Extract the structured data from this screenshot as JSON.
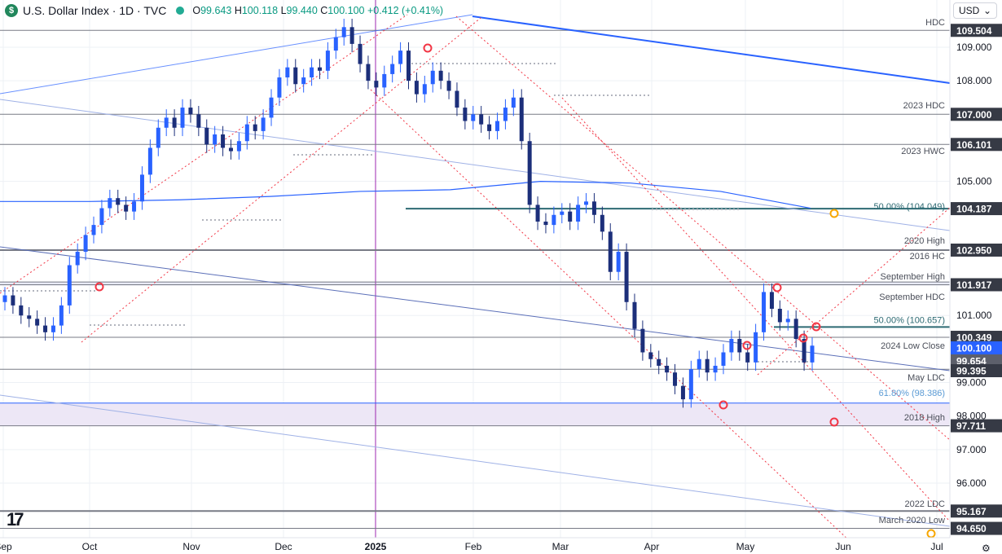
{
  "header": {
    "title": "U.S. Dollar Index · 1D · TVC",
    "open_label": "O",
    "open": "99.643",
    "high_label": "H",
    "high": "100.118",
    "low_label": "L",
    "low": "99.440",
    "close_label": "C",
    "close": "100.100",
    "change": "+0.412 (+0.41%)"
  },
  "currency_button": {
    "label": "USD"
  },
  "colors": {
    "candle_up": "#2962ff",
    "candle_down": "#1c2f7a",
    "channel": "#f23645",
    "trend_blue": "#2962ff",
    "level_gray": "#787b86",
    "vertical_marker": "#9c27b0",
    "price_box": "#363a45",
    "current_price_box": "#2962ff",
    "zone_fill": "#ede7f6"
  },
  "chart_data": {
    "type": "candlestick",
    "title": "U.S. Dollar Index",
    "ylim": [
      94.4,
      110.5
    ],
    "x_tick_labels": [
      "Sep",
      "Oct",
      "Nov",
      "Dec",
      "2025",
      "Feb",
      "Mar",
      "Apr",
      "May",
      "Jun",
      "Jul"
    ],
    "y_tick_labels": [
      "109.000",
      "108.000",
      "105.000",
      "101.000",
      "99.000",
      "98.000",
      "97.000",
      "96.000"
    ],
    "y_tick_values": [
      109,
      108,
      105,
      101,
      99,
      98,
      97,
      96
    ],
    "levels": [
      {
        "label": "HDC",
        "value": 109.504,
        "price_label": "109.504"
      },
      {
        "label": "2023 HDC",
        "value": 107.0,
        "price_label": "107.000"
      },
      {
        "label": "2023 HWC",
        "value": 106.101,
        "price_label": "106.101"
      },
      {
        "label": "50.00% (104.049)",
        "value": 104.049,
        "price_label": ""
      },
      {
        "label": "",
        "value": 104.187,
        "price_label": "104.187"
      },
      {
        "label": "2020 High",
        "value": 103.1,
        "price_label": ""
      },
      {
        "label": "2016 HC",
        "value": 102.95,
        "price_label": "102.950"
      },
      {
        "label": "September High",
        "value": 102.0,
        "price_label": ""
      },
      {
        "label": "September HDC",
        "value": 101.917,
        "price_label": "101.917"
      },
      {
        "label": "50.00% (100.657)",
        "value": 100.657,
        "price_label": ""
      },
      {
        "label": "2024 Low Close",
        "value": 100.349,
        "price_label": "100.349"
      },
      {
        "label": "",
        "value": 100.1,
        "price_label": "100.100"
      },
      {
        "label": "",
        "value": 99.654,
        "price_label": "99.654"
      },
      {
        "label": "May LDC",
        "value": 99.395,
        "price_label": "99.395"
      },
      {
        "label": "61.80% (98.386)",
        "value": 98.386,
        "price_label": ""
      },
      {
        "label": "2018 High",
        "value": 97.711,
        "price_label": "97.711"
      },
      {
        "label": "2022 LDC",
        "value": 95.167,
        "price_label": "95.167"
      },
      {
        "label": "March 2020 Low",
        "value": 94.65,
        "price_label": "94.650"
      }
    ],
    "moving_average_200": [
      104.4,
      104.4,
      104.45,
      104.55,
      104.7,
      104.75,
      105.0,
      104.95,
      104.7,
      104.2
    ],
    "candles_close": [
      101.6,
      101.3,
      101.0,
      100.9,
      100.7,
      100.5,
      100.7,
      101.3,
      102.5,
      102.9,
      103.4,
      103.7,
      104.2,
      104.5,
      104.3,
      104.1,
      104.4,
      105.2,
      106.0,
      106.6,
      106.9,
      106.6,
      107.2,
      107.0,
      106.6,
      106.1,
      106.4,
      106.0,
      105.9,
      106.2,
      106.7,
      106.5,
      106.9,
      107.5,
      108.1,
      108.4,
      107.9,
      108.1,
      108.4,
      108.3,
      108.9,
      109.3,
      109.6,
      109.1,
      108.5,
      108.0,
      107.8,
      108.2,
      108.5,
      108.9,
      108.0,
      107.6,
      107.9,
      108.3,
      108.0,
      107.7,
      107.2,
      106.8,
      107.0,
      106.7,
      106.5,
      106.8,
      107.2,
      107.5,
      106.2,
      104.3,
      103.8,
      103.7,
      104.0,
      104.1,
      103.8,
      104.3,
      104.4,
      104.0,
      103.5,
      102.3,
      102.9,
      101.4,
      100.6,
      99.9,
      99.7,
      99.5,
      99.3,
      98.9,
      98.5,
      99.4,
      99.7,
      99.3,
      99.5,
      99.9,
      100.3,
      99.9,
      99.6,
      100.5,
      101.7,
      101.2,
      100.8,
      100.9,
      100.3,
      99.6,
      100.1
    ],
    "markers_red": [
      101.9,
      108.9,
      99.9,
      98.3,
      101.9,
      100.7,
      100.3,
      97.8
    ],
    "markers_orange": [
      104.05,
      95.2
    ]
  }
}
